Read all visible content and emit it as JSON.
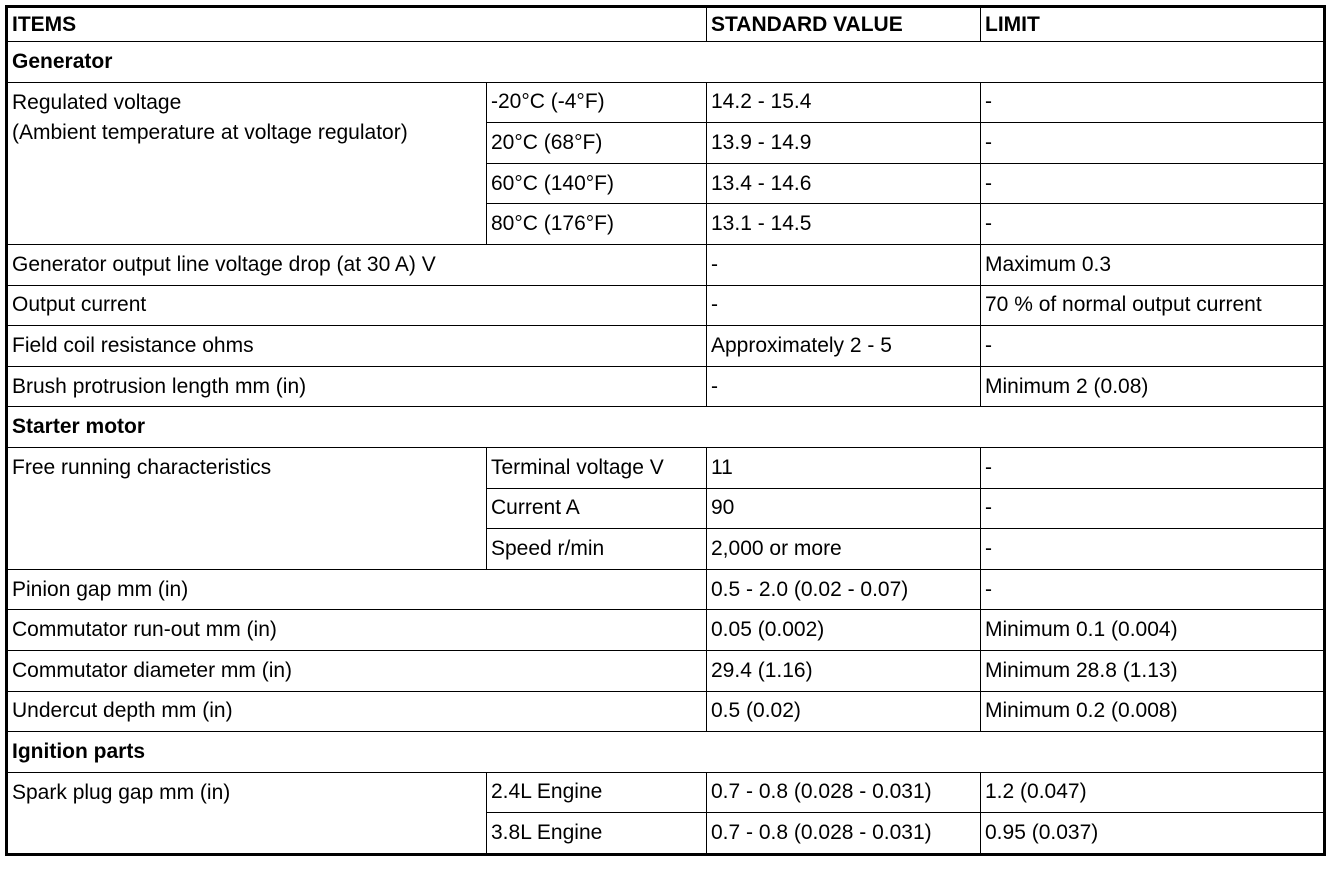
{
  "header": {
    "items": "ITEMS",
    "standard": "STANDARD VALUE",
    "limit": "LIMIT"
  },
  "sections": {
    "generator": {
      "title": "Generator",
      "regulated": {
        "label_line1": "Regulated voltage",
        "label_line2": "(Ambient temperature at voltage regulator)",
        "rows": [
          {
            "condition": "-20°C (-4°F)",
            "standard": "14.2 - 15.4",
            "limit": "-"
          },
          {
            "condition": "20°C (68°F)",
            "standard": "13.9 - 14.9",
            "limit": "-"
          },
          {
            "condition": "60°C (140°F)",
            "standard": "13.4 - 14.6",
            "limit": "-"
          },
          {
            "condition": "80°C (176°F)",
            "standard": "13.1 - 14.5",
            "limit": "-"
          }
        ]
      },
      "rows": [
        {
          "item": "Generator output line voltage drop (at 30 A) V",
          "standard": "-",
          "limit": "Maximum 0.3"
        },
        {
          "item": "Output current",
          "standard": "-",
          "limit": "70 % of normal output current"
        },
        {
          "item": "Field coil resistance ohms",
          "standard": "Approximately 2 - 5",
          "limit": "-"
        },
        {
          "item": "Brush protrusion length mm (in)",
          "standard": "-",
          "limit": "Minimum 2 (0.08)"
        }
      ]
    },
    "starter": {
      "title": "Starter motor",
      "free_running": {
        "label": "Free running characteristics",
        "rows": [
          {
            "condition": "Terminal voltage V",
            "standard": "11",
            "limit": "-"
          },
          {
            "condition": "Current A",
            "standard": "90",
            "limit": "-"
          },
          {
            "condition": "Speed r/min",
            "standard": "2,000 or more",
            "limit": "-"
          }
        ]
      },
      "rows": [
        {
          "item": "Pinion gap mm (in)",
          "standard": "0.5 - 2.0 (0.02 - 0.07)",
          "limit": "-"
        },
        {
          "item": "Commutator run-out mm (in)",
          "standard": "0.05 (0.002)",
          "limit": "Minimum 0.1 (0.004)"
        },
        {
          "item": "Commutator diameter mm (in)",
          "standard": "29.4 (1.16)",
          "limit": "Minimum 28.8 (1.13)"
        },
        {
          "item": "Undercut depth mm (in)",
          "standard": "0.5 (0.02)",
          "limit": "Minimum 0.2 (0.008)"
        }
      ]
    },
    "ignition": {
      "title": "Ignition parts",
      "spark_plug": {
        "label": "Spark plug gap mm (in)",
        "rows": [
          {
            "condition": "2.4L Engine",
            "standard": "0.7 - 0.8 (0.028 - 0.031)",
            "limit": "1.2 (0.047)"
          },
          {
            "condition": "3.8L Engine",
            "standard": "0.7 - 0.8 (0.028 - 0.031)",
            "limit": "0.95 (0.037)"
          }
        ]
      }
    }
  }
}
